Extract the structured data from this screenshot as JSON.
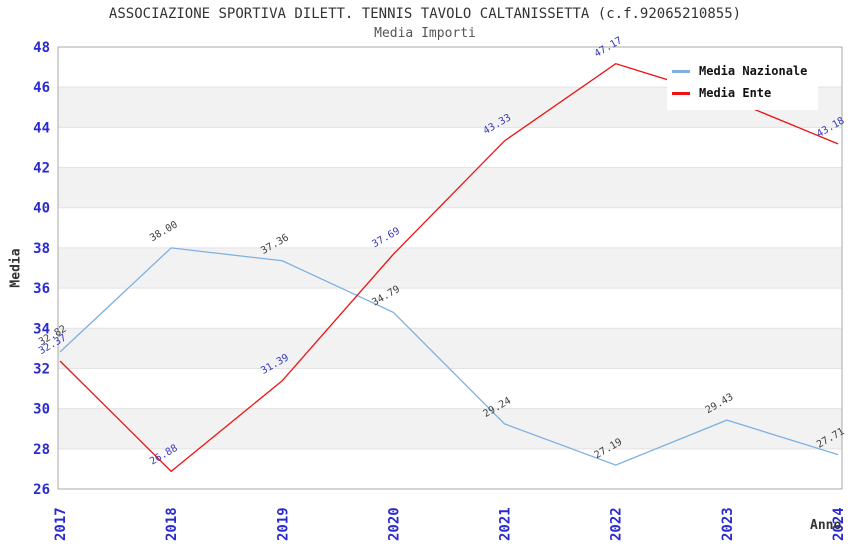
{
  "title": "ASSOCIAZIONE SPORTIVA DILETT. TENNIS TAVOLO CALTANISSETTA (c.f.92065210855)",
  "subtitle": "Media Importi",
  "chart_data": {
    "type": "line",
    "x": [
      2017,
      2018,
      2019,
      2020,
      2021,
      2022,
      2023,
      2024
    ],
    "xlabel": "Anno",
    "ylabel": "Media",
    "ylim": [
      26,
      48
    ],
    "ytick_step": 2,
    "grid": "alternating-horizontal-bands",
    "legend_position": "top-right",
    "series": [
      {
        "name": "Media Nazionale",
        "color": "#7fb0e3",
        "label_color": "#404040",
        "values": [
          32.82,
          38.0,
          37.36,
          34.79,
          29.24,
          27.19,
          29.43,
          27.71
        ],
        "point_labels": [
          "32.82",
          "38.00",
          "37.36",
          "34.79",
          "29.24",
          "27.19",
          "29.43",
          "27.71"
        ]
      },
      {
        "name": "Media Ente",
        "color": "#ee1111",
        "label_color": "#3838b8",
        "values": [
          32.37,
          26.88,
          31.39,
          37.69,
          43.33,
          47.17,
          45.46,
          43.18
        ],
        "point_labels": [
          "32.37",
          "26.88",
          "31.39",
          "37.69",
          "43.33",
          "47.17",
          null,
          "43.18"
        ]
      }
    ]
  },
  "colors": {
    "band": "#f2f2f2",
    "gridline": "#e3e3e3",
    "border": "#aaaaaa",
    "tick": "#2a2ad2",
    "title": "#333333"
  }
}
